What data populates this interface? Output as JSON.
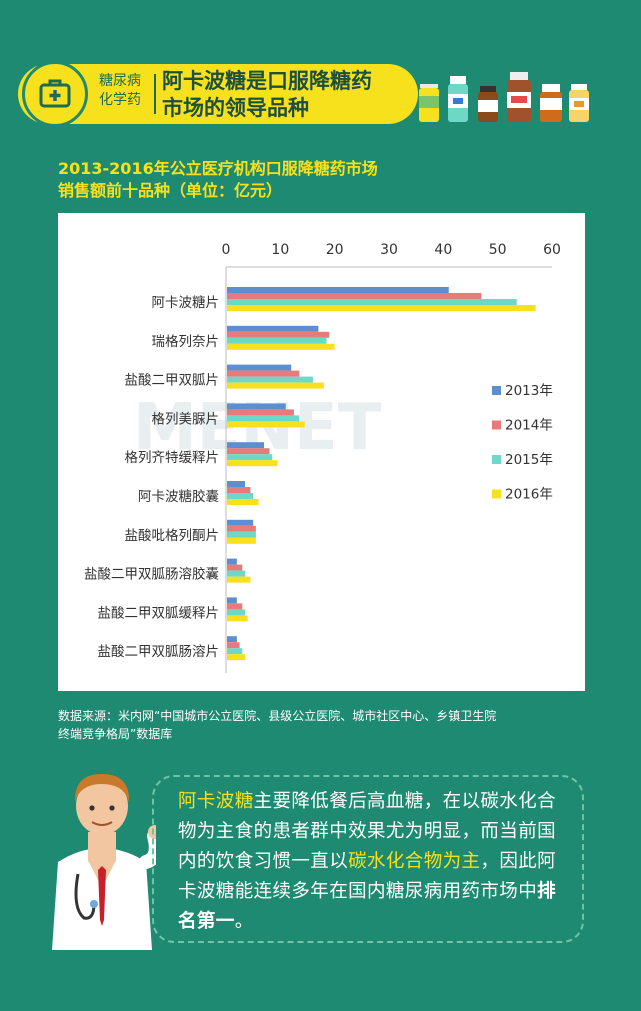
{
  "header": {
    "tag_line1": "糖尿病",
    "tag_line2": "化学药",
    "title_line1": "阿卡波糖是口服降糖药",
    "title_line2": "市场的领导品种"
  },
  "chart_title": {
    "line1": "2013-2016年公立医疗机构口服降糖药市场",
    "line2": "销售额前十品种（单位：亿元）"
  },
  "chart_data": {
    "type": "bar",
    "orientation": "horizontal",
    "x_axis_position": "top",
    "xlim": [
      0,
      60
    ],
    "xticks": [
      0,
      10,
      20,
      30,
      40,
      50,
      60
    ],
    "legend_position": "right",
    "categories": [
      "阿卡波糖片",
      "瑞格列奈片",
      "盐酸二甲双胍片",
      "格列美脲片",
      "格列齐特缓释片",
      "阿卡波糖胶囊",
      "盐酸吡格列酮片",
      "盐酸二甲双胍肠溶胶囊",
      "盐酸二甲双胍缓释片",
      "盐酸二甲双胍肠溶片"
    ],
    "series": [
      {
        "name": "2013年",
        "color": "#5b8fcf",
        "values": [
          41,
          17,
          12,
          11,
          7,
          3.5,
          5,
          2,
          2,
          2
        ]
      },
      {
        "name": "2014年",
        "color": "#e77b7b",
        "values": [
          47,
          19,
          13.5,
          12.5,
          8,
          4.5,
          5.5,
          3,
          3,
          2.5
        ]
      },
      {
        "name": "2015年",
        "color": "#6ed8c6",
        "values": [
          53.5,
          18.5,
          16,
          13.5,
          8.5,
          5,
          5.5,
          3.5,
          3.5,
          3
        ]
      },
      {
        "name": "2016年",
        "color": "#f7e11d",
        "values": [
          57,
          20,
          18,
          14.5,
          9.5,
          6,
          5.5,
          4.5,
          4,
          3.5
        ]
      }
    ]
  },
  "source": {
    "line1": "数据来源：米内网“中国城市公立医院、县级公立医院、城市社区中心、乡镇卫生院",
    "line2": "终端竞争格局”数据库"
  },
  "bubble": {
    "p1": "阿卡波糖",
    "p2": "主要降低餐后高血糖，在以碳水化合物为主食的患者群中效果尤为明显，而当前国内的饮食习惯一直以",
    "p3": "碳水化合物为主",
    "p4": "，因此阿卡波糖能连续多年在国内糖尿病用药市场中",
    "p5": "排名第一",
    "p6": "。"
  },
  "watermark": "MENET",
  "colors": {
    "background": "#1e8a72",
    "accent_yellow": "#f7e11d",
    "title_green": "#1d4f3f"
  }
}
